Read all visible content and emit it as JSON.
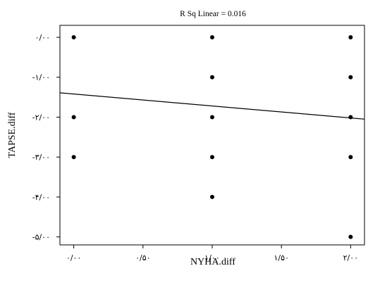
{
  "chart_data": {
    "type": "scatter",
    "title": "R Sq Linear = 0.016",
    "xlabel": "NYHA.diff",
    "ylabel": "TAPSE.diff",
    "xlim": [
      -0.1,
      2.1
    ],
    "ylim": [
      -5.2,
      0.3
    ],
    "grid": false,
    "x_ticks": [
      0,
      0.5,
      1,
      1.5,
      2
    ],
    "x_tick_labels": [
      "۰/۰۰",
      "۰/۵۰",
      "۱/۰۰",
      "۱/۵۰",
      "۲/۰۰"
    ],
    "y_ticks": [
      0,
      -1,
      -2,
      -3,
      -4,
      -5
    ],
    "y_tick_labels": [
      "۰/۰۰",
      "-۱/۰۰",
      "-۲/۰۰",
      "-۳/۰۰",
      "-۴/۰۰",
      "-۵/۰۰"
    ],
    "points": [
      {
        "x": 0,
        "y": 0
      },
      {
        "x": 0,
        "y": -2
      },
      {
        "x": 0,
        "y": -3
      },
      {
        "x": 1,
        "y": 0
      },
      {
        "x": 1,
        "y": -1
      },
      {
        "x": 1,
        "y": -2
      },
      {
        "x": 1,
        "y": -3
      },
      {
        "x": 1,
        "y": -4
      },
      {
        "x": 2,
        "y": 0
      },
      {
        "x": 2,
        "y": -1
      },
      {
        "x": 2,
        "y": -2
      },
      {
        "x": 2,
        "y": -3
      },
      {
        "x": 2,
        "y": -5
      }
    ],
    "fit_line": {
      "slope": -0.3,
      "intercept": -1.42
    }
  }
}
